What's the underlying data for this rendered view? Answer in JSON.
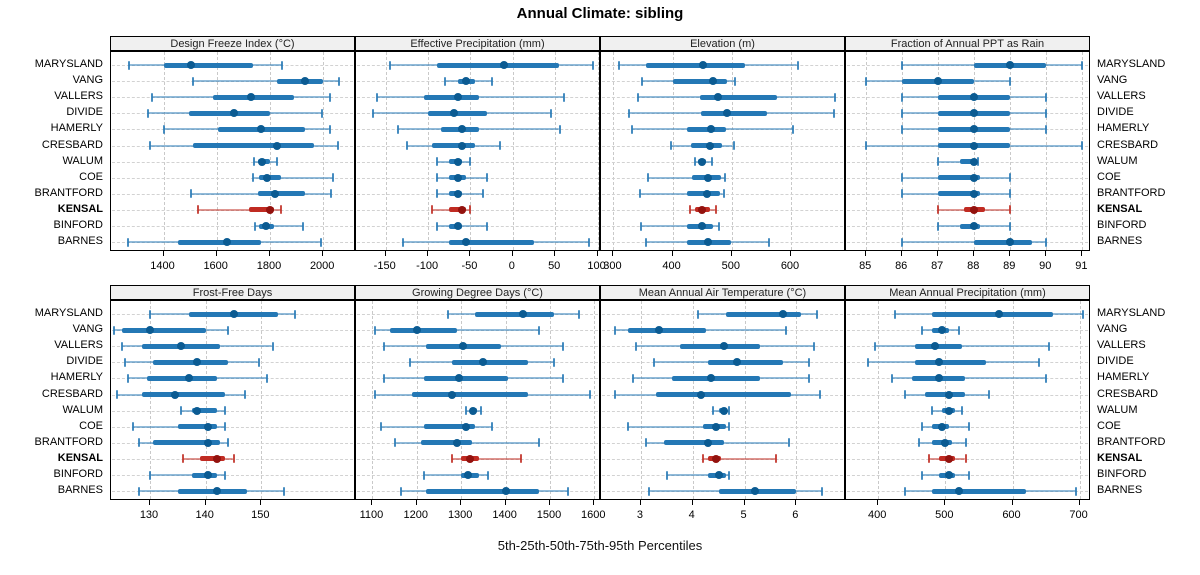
{
  "title": "Annual Climate: sibling",
  "footer_label": "5th-25th-50th-75th-95th Percentiles",
  "stations": [
    "MARYSLAND",
    "VANG",
    "VALLERS",
    "DIVIDE",
    "HAMERLY",
    "CRESBARD",
    "WALUM",
    "COE",
    "BRANTFORD",
    "KENSAL",
    "BINFORD",
    "BARNES"
  ],
  "highlight_station": "KENSAL",
  "percentile_labels": [
    "5th",
    "25th",
    "50th",
    "75th",
    "95th"
  ],
  "colors": {
    "series_blue": "#2478b5",
    "series_blue_dot": "#0b5b92",
    "highlight_red": "#c02b22",
    "highlight_red_dot": "#93120e",
    "panel_header_bg": "#f0f0f0",
    "grid": "#c9c9c9",
    "border": "#000000",
    "text": "#000000"
  },
  "chart_data": [
    {
      "type": "boxplot",
      "orientation": "horizontal",
      "key": "design_freeze_index",
      "title": "Design Freeze Index (°C)",
      "row": 1,
      "col": 1,
      "xlim": [
        1203,
        2123
      ],
      "ticks": [
        1400,
        1600,
        1800,
        2000
      ],
      "percentiles": [
        5,
        25,
        50,
        75,
        95
      ],
      "series": {
        "MARYSLAND": [
          1270,
          1400,
          1505,
          1735,
          1845
        ],
        "VANG": [
          1510,
          1825,
          1930,
          2000,
          2060
        ],
        "VALLERS": [
          1355,
          1585,
          1730,
          1890,
          2025
        ],
        "DIVIDE": [
          1340,
          1495,
          1665,
          1800,
          1995
        ],
        "HAMERLY": [
          1400,
          1605,
          1765,
          1930,
          2025
        ],
        "CRESBARD": [
          1350,
          1510,
          1825,
          1965,
          2055
        ],
        "WALUM": [
          1740,
          1755,
          1770,
          1800,
          1825
        ],
        "COE": [
          1735,
          1760,
          1790,
          1840,
          2035
        ],
        "BRANTFORD": [
          1505,
          1755,
          1820,
          1930,
          2030
        ],
        "KENSAL": [
          1530,
          1720,
          1800,
          1815,
          1840
        ],
        "BINFORD": [
          1745,
          1760,
          1785,
          1815,
          1925
        ],
        "BARNES": [
          1265,
          1455,
          1640,
          1765,
          1990
        ]
      }
    },
    {
      "type": "boxplot",
      "orientation": "horizontal",
      "key": "effective_precipitation",
      "title": "Effective Precipitation (mm)",
      "row": 1,
      "col": 2,
      "xlim": [
        -185,
        104
      ],
      "ticks": [
        -150,
        -100,
        -50,
        0,
        50,
        100
      ],
      "percentiles": [
        5,
        25,
        50,
        75,
        95
      ],
      "series": {
        "MARYSLAND": [
          -145,
          -90,
          -10,
          55,
          95
        ],
        "VANG": [
          -80,
          -65,
          -55,
          -45,
          -25
        ],
        "VALLERS": [
          -160,
          -105,
          -65,
          -40,
          60
        ],
        "DIVIDE": [
          -165,
          -100,
          -70,
          -30,
          45
        ],
        "HAMERLY": [
          -135,
          -85,
          -60,
          -40,
          55
        ],
        "CRESBARD": [
          -125,
          -95,
          -60,
          -45,
          -15
        ],
        "WALUM": [
          -90,
          -75,
          -65,
          -60,
          -50
        ],
        "COE": [
          -90,
          -75,
          -65,
          -55,
          -30
        ],
        "BRANTFORD": [
          -90,
          -75,
          -65,
          -60,
          -35
        ],
        "KENSAL": [
          -95,
          -75,
          -60,
          -55,
          -50
        ],
        "BINFORD": [
          -90,
          -75,
          -65,
          -60,
          -30
        ],
        "BARNES": [
          -130,
          -75,
          -55,
          25,
          90
        ]
      }
    },
    {
      "type": "boxplot",
      "orientation": "horizontal",
      "key": "elevation",
      "title": "Elevation (m)",
      "row": 1,
      "col": 3,
      "xlim": [
        279,
        693
      ],
      "ticks": [
        300,
        400,
        500,
        600
      ],
      "percentiles": [
        5,
        25,
        50,
        75,
        95
      ],
      "series": {
        "MARYSLAND": [
          310,
          355,
          452,
          523,
          611
        ],
        "VANG": [
          348,
          400,
          468,
          492,
          505
        ],
        "VALLERS": [
          342,
          447,
          476,
          576,
          674
        ],
        "DIVIDE": [
          326,
          448,
          492,
          560,
          673
        ],
        "HAMERLY": [
          331,
          425,
          465,
          490,
          603
        ],
        "CRESBARD": [
          398,
          431,
          463,
          483,
          503
        ],
        "WALUM": [
          438,
          443,
          449,
          457,
          466
        ],
        "COE": [
          359,
          432,
          460,
          481,
          488
        ],
        "BRANTFORD": [
          345,
          424,
          458,
          480,
          486
        ],
        "KENSAL": [
          430,
          437,
          450,
          463,
          473
        ],
        "BINFORD": [
          346,
          425,
          449,
          468,
          479
        ],
        "BARNES": [
          355,
          424,
          460,
          499,
          563
        ]
      }
    },
    {
      "type": "boxplot",
      "orientation": "horizontal",
      "key": "fraction_ppt_rain",
      "title": "Fraction of Annual PPT as Rain",
      "row": 1,
      "col": 4,
      "xlim": [
        84.44,
        91.24
      ],
      "ticks": [
        85,
        86,
        87,
        88,
        89,
        90,
        91
      ],
      "percentiles": [
        5,
        25,
        50,
        75,
        95
      ],
      "series": {
        "MARYSLAND": [
          86,
          88,
          89,
          90,
          91
        ],
        "VANG": [
          85,
          86,
          87,
          88,
          89
        ],
        "VALLERS": [
          86,
          87,
          88,
          89,
          90
        ],
        "DIVIDE": [
          86,
          87,
          88,
          89,
          90
        ],
        "HAMERLY": [
          86,
          87,
          88,
          89,
          90
        ],
        "CRESBARD": [
          85,
          87,
          88,
          89,
          91
        ],
        "WALUM": [
          87,
          87.6,
          88,
          88.05,
          88.1
        ],
        "COE": [
          86,
          87,
          88,
          88.15,
          89
        ],
        "BRANTFORD": [
          86,
          87,
          88,
          88.15,
          89
        ],
        "KENSAL": [
          87,
          87.7,
          88,
          88.3,
          89
        ],
        "BINFORD": [
          87,
          87.6,
          88,
          88.15,
          89
        ],
        "BARNES": [
          86,
          88,
          89,
          89.6,
          90
        ]
      }
    },
    {
      "type": "boxplot",
      "orientation": "horizontal",
      "key": "frost_free_days",
      "title": "Frost-Free Days",
      "row": 2,
      "col": 1,
      "xlim": [
        123,
        167
      ],
      "ticks": [
        130,
        140,
        150
      ],
      "percentiles": [
        5,
        25,
        50,
        75,
        95
      ],
      "series": {
        "MARYSLAND": [
          130,
          137,
          145,
          153,
          156
        ],
        "VANG": [
          123.5,
          125,
          130,
          140,
          144
        ],
        "VALLERS": [
          125,
          128.5,
          135.5,
          142.5,
          152
        ],
        "DIVIDE": [
          125.5,
          130.5,
          138.5,
          144,
          149.5
        ],
        "HAMERLY": [
          126,
          129.5,
          137,
          142,
          151
        ],
        "CRESBARD": [
          124,
          128.5,
          134.5,
          143.5,
          147
        ],
        "WALUM": [
          135.5,
          137.5,
          138.5,
          142,
          143.5
        ],
        "COE": [
          127,
          135,
          140.5,
          142,
          143.5
        ],
        "BRANTFORD": [
          128,
          130.5,
          140.5,
          142.5,
          144
        ],
        "KENSAL": [
          136,
          139,
          142,
          143.5,
          145
        ],
        "BINFORD": [
          130,
          137.5,
          140.5,
          142,
          143.5
        ],
        "BARNES": [
          128,
          135,
          142,
          147.5,
          154
        ]
      }
    },
    {
      "type": "boxplot",
      "orientation": "horizontal",
      "key": "growing_degree_days",
      "title": "Growing Degree Days (°C)",
      "row": 2,
      "col": 2,
      "xlim": [
        1063,
        1615
      ],
      "ticks": [
        1100,
        1200,
        1300,
        1400,
        1500,
        1600
      ],
      "percentiles": [
        5,
        25,
        50,
        75,
        95
      ],
      "series": {
        "MARYSLAND": [
          1270,
          1330,
          1440,
          1510,
          1565
        ],
        "VANG": [
          1105,
          1140,
          1200,
          1290,
          1475
        ],
        "VALLERS": [
          1125,
          1220,
          1305,
          1390,
          1530
        ],
        "DIVIDE": [
          1185,
          1280,
          1350,
          1450,
          1510
        ],
        "HAMERLY": [
          1125,
          1215,
          1295,
          1405,
          1530
        ],
        "CRESBARD": [
          1105,
          1190,
          1280,
          1450,
          1590
        ],
        "WALUM": [
          1310,
          1320,
          1327,
          1335,
          1345
        ],
        "COE": [
          1120,
          1215,
          1310,
          1330,
          1370
        ],
        "BRANTFORD": [
          1150,
          1210,
          1290,
          1325,
          1475
        ],
        "KENSAL": [
          1280,
          1300,
          1320,
          1340,
          1435
        ],
        "BINFORD": [
          1215,
          1300,
          1315,
          1340,
          1360
        ],
        "BARNES": [
          1165,
          1220,
          1400,
          1475,
          1540
        ]
      }
    },
    {
      "type": "boxplot",
      "orientation": "horizontal",
      "key": "mean_annual_air_temp",
      "title": "Mean Annual Air Temperature (°C)",
      "row": 2,
      "col": 3,
      "xlim": [
        2.23,
        6.96
      ],
      "ticks": [
        3,
        4,
        5,
        6
      ],
      "percentiles": [
        5,
        25,
        50,
        75,
        95
      ],
      "series": {
        "MARYSLAND": [
          4.1,
          4.65,
          5.75,
          6.1,
          6.4
        ],
        "VANG": [
          2.5,
          2.75,
          3.35,
          4.25,
          5.8
        ],
        "VALLERS": [
          2.9,
          3.75,
          4.6,
          5.3,
          6.35
        ],
        "DIVIDE": [
          3.25,
          4.3,
          4.85,
          5.75,
          6.25
        ],
        "HAMERLY": [
          2.85,
          3.6,
          4.35,
          5.3,
          6.25
        ],
        "CRESBARD": [
          2.5,
          3.3,
          4.15,
          5.9,
          6.45
        ],
        "WALUM": [
          4.4,
          4.5,
          4.6,
          4.65,
          4.7
        ],
        "COE": [
          2.75,
          4.2,
          4.45,
          4.65,
          4.7
        ],
        "BRANTFORD": [
          3.1,
          3.45,
          4.3,
          4.6,
          5.85
        ],
        "KENSAL": [
          4.2,
          4.3,
          4.45,
          4.55,
          5.6
        ],
        "BINFORD": [
          3.5,
          4.3,
          4.5,
          4.65,
          4.7
        ],
        "BARNES": [
          3.15,
          4.5,
          5.2,
          6.0,
          6.5
        ]
      }
    },
    {
      "type": "boxplot",
      "orientation": "horizontal",
      "key": "mean_annual_precip",
      "title": "Mean Annual Precipitation (mm)",
      "row": 2,
      "col": 4,
      "xlim": [
        352,
        717
      ],
      "ticks": [
        400,
        500,
        600,
        700
      ],
      "percentiles": [
        5,
        25,
        50,
        75,
        95
      ],
      "series": {
        "MARYSLAND": [
          425,
          480,
          580,
          660,
          705
        ],
        "VANG": [
          465,
          480,
          495,
          505,
          520
        ],
        "VALLERS": [
          395,
          455,
          485,
          525,
          655
        ],
        "DIVIDE": [
          385,
          455,
          490,
          560,
          640
        ],
        "HAMERLY": [
          420,
          450,
          490,
          530,
          650
        ],
        "CRESBARD": [
          440,
          470,
          505,
          530,
          565
        ],
        "WALUM": [
          480,
          495,
          505,
          515,
          525
        ],
        "COE": [
          465,
          480,
          495,
          505,
          535
        ],
        "BRANTFORD": [
          460,
          480,
          500,
          510,
          530
        ],
        "KENSAL": [
          475,
          490,
          505,
          515,
          530
        ],
        "BINFORD": [
          465,
          490,
          505,
          515,
          535
        ],
        "BARNES": [
          440,
          480,
          520,
          620,
          695
        ]
      }
    }
  ]
}
